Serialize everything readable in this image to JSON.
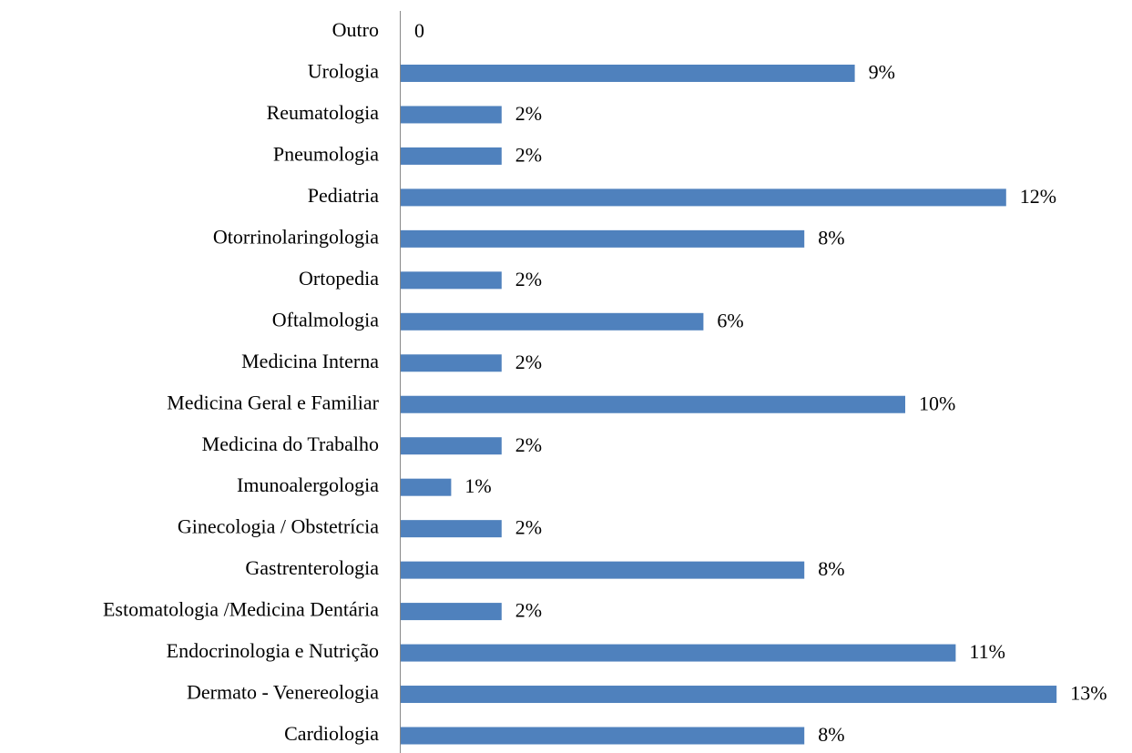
{
  "chart_data": {
    "type": "bar",
    "orientation": "horizontal",
    "color": "#4f81bd",
    "categories": [
      "Cardiologia",
      "Dermato - Venereologia",
      "Endocrinologia e Nutrição",
      "Estomatologia /Medicina Dentária",
      "Gastrenterologia",
      "Ginecologia / Obstetrícia",
      "Imunoalergologia",
      "Medicina do Trabalho",
      "Medicina Geral e Familiar",
      "Medicina Interna",
      "Oftalmologia",
      "Ortopedia",
      "Otorrinolaringologia",
      "Pediatria",
      "Pneumologia",
      "Reumatologia",
      "Urologia",
      "Outro"
    ],
    "values": [
      8,
      13,
      11,
      2,
      8,
      2,
      1,
      2,
      10,
      2,
      6,
      2,
      8,
      12,
      2,
      2,
      9,
      0
    ],
    "value_labels": [
      "8%",
      "13%",
      "11%",
      "2%",
      "8%",
      "2%",
      "1%",
      "2%",
      "10%",
      "2%",
      "6%",
      "2%",
      "8%",
      "12%",
      "2%",
      "2%",
      "9%",
      "0"
    ]
  }
}
